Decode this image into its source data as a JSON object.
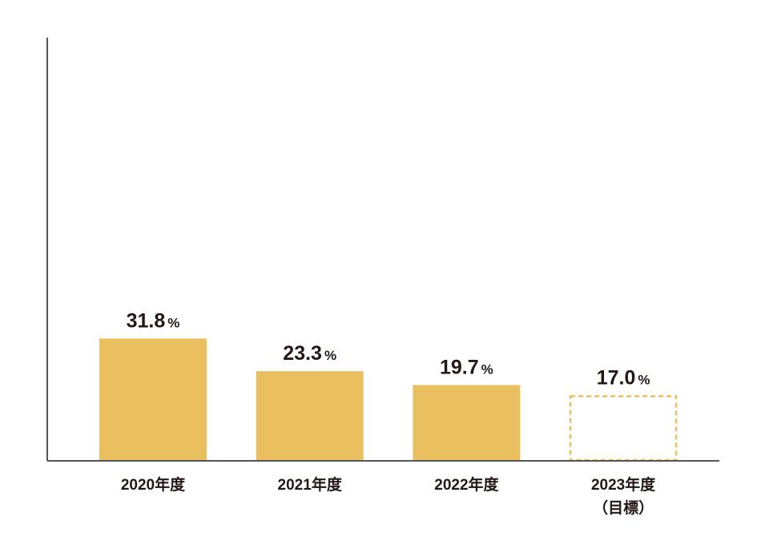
{
  "chart_data": {
    "type": "bar",
    "categories": [
      "2020年度",
      "2021年度",
      "2022年度",
      "2023年度"
    ],
    "values": [
      31.8,
      23.3,
      19.7,
      17.0
    ],
    "value_labels": [
      "31.8",
      "23.3",
      "19.7",
      "17.0"
    ],
    "unit": "%",
    "dashed": [
      false,
      false,
      false,
      true
    ],
    "target_note": "（目標）",
    "color": "#e9bf5f",
    "axis_color": "#555555",
    "ylim": [
      0,
      110
    ]
  }
}
